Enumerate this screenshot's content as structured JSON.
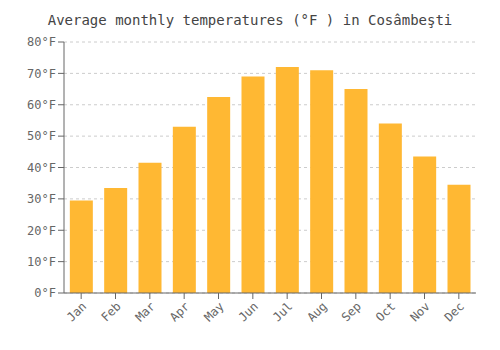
{
  "chart_data": {
    "type": "bar",
    "title": "Average monthly temperatures (°F ) in Cosâmbeşti",
    "categories": [
      "Jan",
      "Feb",
      "Mar",
      "Apr",
      "May",
      "Jun",
      "Jul",
      "Aug",
      "Sep",
      "Oct",
      "Nov",
      "Dec"
    ],
    "values": [
      29.5,
      33.5,
      41.5,
      53.0,
      62.5,
      69.0,
      72.0,
      71.0,
      65.0,
      54.0,
      43.5,
      34.5
    ],
    "color": "#FFB833",
    "ylim": [
      0,
      80
    ],
    "yticks": [
      {
        "value": 0,
        "label": "0°F"
      },
      {
        "value": 10,
        "label": "10°F"
      },
      {
        "value": 20,
        "label": "20°F"
      },
      {
        "value": 30,
        "label": "30°F"
      },
      {
        "value": 40,
        "label": "40°F"
      },
      {
        "value": 50,
        "label": "50°F"
      },
      {
        "value": 60,
        "label": "60°F"
      },
      {
        "value": 70,
        "label": "70°F"
      },
      {
        "value": 80,
        "label": "80°F"
      }
    ],
    "grid": true
  }
}
